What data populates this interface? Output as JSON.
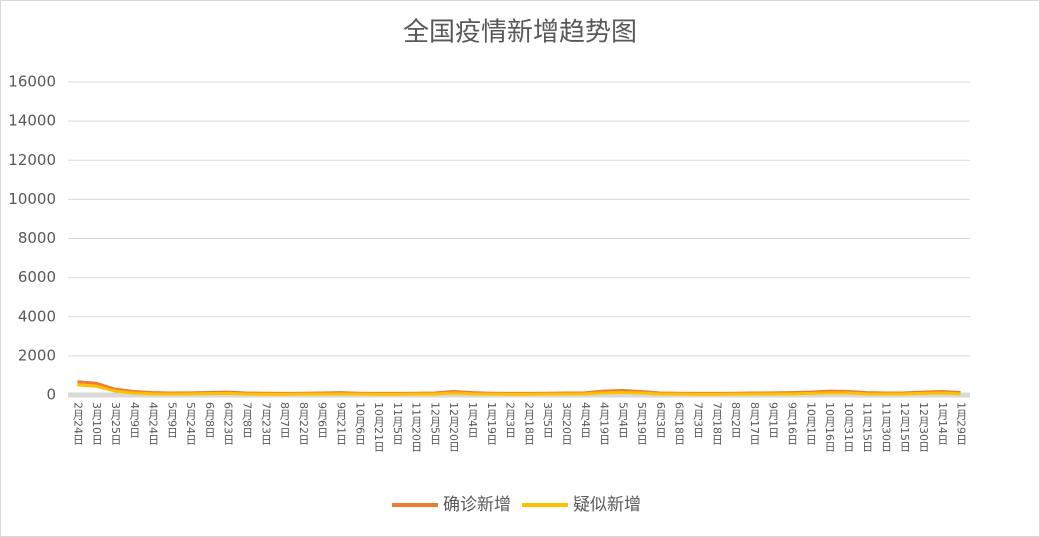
{
  "chart_data": {
    "type": "line",
    "title": "全国疫情新增趋势图",
    "categories": [
      "2月24日",
      "3月10日",
      "3月25日",
      "4月9日",
      "4月24日",
      "5月9日",
      "5月24日",
      "6月8日",
      "6月23日",
      "7月8日",
      "7月23日",
      "8月7日",
      "8月22日",
      "9月6日",
      "9月21日",
      "10月6日",
      "10月21日",
      "11月5日",
      "11月20日",
      "12月5日",
      "12月20日",
      "1月4日",
      "1月19日",
      "2月3日",
      "2月18日",
      "3月5日",
      "3月20日",
      "4月4日",
      "4月19日",
      "5月4日",
      "5月19日",
      "6月3日",
      "6月18日",
      "7月3日",
      "7月18日",
      "8月2日",
      "8月17日",
      "9月1日",
      "9月16日",
      "10月1日",
      "10月16日",
      "10月31日",
      "11月15日",
      "11月30日",
      "12月15日",
      "12月30日",
      "1月14日",
      "1月29日"
    ],
    "series": [
      {
        "name": "确诊新增",
        "color": "#ed7d31",
        "values": [
          680,
          600,
          300,
          180,
          120,
          100,
          110,
          130,
          150,
          100,
          90,
          80,
          90,
          100,
          120,
          90,
          80,
          80,
          90,
          100,
          180,
          120,
          90,
          80,
          80,
          90,
          100,
          110,
          200,
          230,
          180,
          100,
          90,
          80,
          80,
          90,
          100,
          110,
          120,
          150,
          200,
          180,
          120,
          100,
          110,
          150,
          180,
          120
        ]
      },
      {
        "name": "疑似新增",
        "color": "#ffc000",
        "values": [
          520,
          450,
          200,
          100,
          60,
          50,
          60,
          70,
          80,
          50,
          40,
          40,
          50,
          50,
          60,
          50,
          40,
          40,
          50,
          50,
          100,
          60,
          50,
          40,
          40,
          50,
          50,
          60,
          110,
          130,
          100,
          50,
          50,
          40,
          40,
          50,
          50,
          60,
          60,
          80,
          110,
          100,
          60,
          50,
          60,
          80,
          100,
          60
        ]
      }
    ],
    "ylim": [
      0,
      16000
    ],
    "yticks": [
      0,
      2000,
      4000,
      6000,
      8000,
      10000,
      12000,
      14000,
      16000
    ],
    "grid": true,
    "legend": "bottom"
  }
}
